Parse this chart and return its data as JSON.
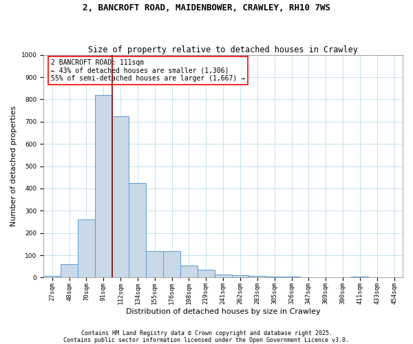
{
  "title": "2, BANCROFT ROAD, MAIDENBOWER, CRAWLEY, RH10 7WS",
  "subtitle": "Size of property relative to detached houses in Crawley",
  "xlabel": "Distribution of detached houses by size in Crawley",
  "ylabel": "Number of detached properties",
  "bar_categories": [
    "27sqm",
    "48sqm",
    "70sqm",
    "91sqm",
    "112sqm",
    "134sqm",
    "155sqm",
    "176sqm",
    "198sqm",
    "219sqm",
    "241sqm",
    "262sqm",
    "283sqm",
    "305sqm",
    "326sqm",
    "347sqm",
    "369sqm",
    "390sqm",
    "411sqm",
    "433sqm",
    "454sqm"
  ],
  "bar_values": [
    8,
    60,
    260,
    820,
    725,
    425,
    120,
    120,
    55,
    35,
    14,
    10,
    7,
    5,
    4,
    2,
    0,
    0,
    3,
    0,
    0
  ],
  "bar_color": "#c9d9e8",
  "bar_edge_color": "#5b9bd5",
  "redline_bin": 4,
  "annotation_line1": "2 BANCROFT ROAD: 111sqm",
  "annotation_line2": "← 43% of detached houses are smaller (1,306)",
  "annotation_line3": "55% of semi-detached houses are larger (1,667) →",
  "annotation_box_color": "white",
  "annotation_box_edge": "red",
  "redline_color": "#8b0000",
  "ylim": [
    0,
    1000
  ],
  "yticks": [
    0,
    100,
    200,
    300,
    400,
    500,
    600,
    700,
    800,
    900,
    1000
  ],
  "footer_line1": "Contains HM Land Registry data © Crown copyright and database right 2025.",
  "footer_line2": "Contains public sector information licensed under the Open Government Licence v3.0.",
  "title_fontsize": 9,
  "subtitle_fontsize": 8.5,
  "axis_label_fontsize": 8,
  "tick_fontsize": 6.5,
  "annotation_fontsize": 7,
  "footer_fontsize": 6
}
